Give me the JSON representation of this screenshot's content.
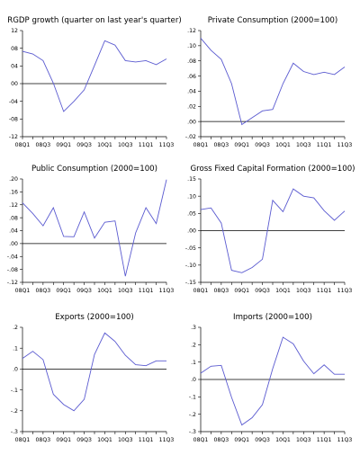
{
  "colors": {
    "line": "#5a5ad0",
    "axis": "#000000",
    "background": "#ffffff"
  },
  "chart_data": [
    {
      "type": "line",
      "title": "RGDP growth (quarter on last year's quarter)",
      "x": [
        "08Q1",
        "08Q2",
        "08Q3",
        "08Q4",
        "09Q1",
        "09Q2",
        "09Q3",
        "09Q4",
        "10Q1",
        "10Q2",
        "10Q3",
        "10Q4",
        "11Q1",
        "11Q2",
        "11Q3"
      ],
      "xtick_labels": [
        "08Q1",
        "08Q3",
        "09Q1",
        "09Q3",
        "10Q1",
        "10Q3",
        "11Q1",
        "11Q3"
      ],
      "yticks": [
        -0.12,
        -0.08,
        -0.04,
        0.0,
        0.04,
        0.08,
        0.12
      ],
      "ytick_labels": [
        "-12",
        "-08",
        "-04",
        "00",
        "04",
        "08",
        "12"
      ],
      "ylim": [
        -0.12,
        0.12
      ],
      "reference_line": 0,
      "series": [
        {
          "values": [
            0.073,
            0.067,
            0.052,
            0.001,
            -0.063,
            -0.04,
            -0.014,
            0.041,
            0.097,
            0.087,
            0.052,
            0.049,
            0.052,
            0.043,
            0.056
          ]
        }
      ]
    },
    {
      "type": "line",
      "title": "Private Consumption (2000=100)",
      "x": [
        "08Q1",
        "08Q2",
        "08Q3",
        "08Q4",
        "09Q1",
        "09Q2",
        "09Q3",
        "09Q4",
        "10Q1",
        "10Q2",
        "10Q3",
        "10Q4",
        "11Q1",
        "11Q2",
        "11Q3"
      ],
      "xtick_labels": [
        "08Q1",
        "08Q3",
        "09Q1",
        "09Q3",
        "10Q1",
        "10Q3",
        "11Q1",
        "11Q3"
      ],
      "yticks": [
        -0.02,
        0.0,
        0.02,
        0.04,
        0.06,
        0.08,
        0.1,
        0.12
      ],
      "ytick_labels": [
        "-.02",
        ".00",
        ".02",
        ".04",
        ".06",
        ".08",
        ".10",
        ".12"
      ],
      "ylim": [
        -0.02,
        0.12
      ],
      "reference_line": 0,
      "series": [
        {
          "values": [
            0.11,
            0.094,
            0.082,
            0.05,
            -0.004,
            0.005,
            0.014,
            0.016,
            0.05,
            0.077,
            0.066,
            0.062,
            0.065,
            0.062,
            0.072
          ]
        }
      ]
    },
    {
      "type": "line",
      "title": "Public Consumption (2000=100)",
      "x": [
        "08Q1",
        "08Q2",
        "08Q3",
        "08Q4",
        "09Q1",
        "09Q2",
        "09Q3",
        "09Q4",
        "10Q1",
        "10Q2",
        "10Q3",
        "10Q4",
        "11Q1",
        "11Q2",
        "11Q3"
      ],
      "xtick_labels": [
        "08Q1",
        "08Q3",
        "09Q1",
        "09Q3",
        "10Q1",
        "10Q3",
        "11Q1",
        "11Q3"
      ],
      "yticks": [
        -0.12,
        -0.08,
        -0.04,
        0.0,
        0.04,
        0.08,
        0.12,
        0.16,
        0.2
      ],
      "ytick_labels": [
        "-.12",
        "-.08",
        "-.04",
        ".00",
        ".04",
        ".08",
        ".12",
        ".16",
        ".20"
      ],
      "ylim": [
        -0.12,
        0.2
      ],
      "reference_line": 0,
      "series": [
        {
          "values": [
            0.126,
            0.093,
            0.055,
            0.111,
            0.022,
            0.021,
            0.098,
            0.017,
            0.066,
            0.07,
            -0.101,
            0.033,
            0.111,
            0.062,
            0.198
          ]
        }
      ]
    },
    {
      "type": "line",
      "title": "Gross Fixed Capital Formation (2000=100)",
      "x": [
        "08Q1",
        "08Q2",
        "08Q3",
        "08Q4",
        "09Q1",
        "09Q2",
        "09Q3",
        "09Q4",
        "10Q1",
        "10Q2",
        "10Q3",
        "10Q4",
        "11Q1",
        "11Q2",
        "11Q3"
      ],
      "xtick_labels": [
        "08Q1",
        "08Q3",
        "09Q1",
        "09Q3",
        "10Q1",
        "10Q3",
        "11Q1",
        "11Q3"
      ],
      "yticks": [
        -0.15,
        -0.1,
        -0.05,
        0.0,
        0.05,
        0.1,
        0.15
      ],
      "ytick_labels": [
        "-.15",
        "-.10",
        "-.05",
        ".00",
        ".05",
        ".10",
        ".15"
      ],
      "ylim": [
        -0.15,
        0.15
      ],
      "reference_line": 0,
      "series": [
        {
          "values": [
            0.061,
            0.066,
            0.022,
            -0.115,
            -0.122,
            -0.107,
            -0.083,
            0.088,
            0.055,
            0.121,
            0.1,
            0.095,
            0.058,
            0.03,
            0.057
          ]
        }
      ]
    },
    {
      "type": "line",
      "title": "Exports (2000=100)",
      "x": [
        "08Q1",
        "08Q2",
        "08Q3",
        "08Q4",
        "09Q1",
        "09Q2",
        "09Q3",
        "09Q4",
        "10Q1",
        "10Q2",
        "10Q3",
        "10Q4",
        "11Q1",
        "11Q2",
        "11Q3"
      ],
      "xtick_labels": [
        "08Q1",
        "08Q3",
        "09Q1",
        "09Q3",
        "10Q1",
        "10Q3",
        "11Q1",
        "11Q3"
      ],
      "yticks": [
        -0.3,
        -0.2,
        -0.1,
        0.0,
        0.1,
        0.2
      ],
      "ytick_labels": [
        "-.3",
        "-.2",
        "-.1",
        ".0",
        ".1",
        ".2"
      ],
      "ylim": [
        -0.3,
        0.2
      ],
      "reference_line": 0,
      "series": [
        {
          "values": [
            0.051,
            0.085,
            0.045,
            -0.121,
            -0.17,
            -0.2,
            -0.145,
            0.07,
            0.173,
            0.132,
            0.066,
            0.021,
            0.016,
            0.039,
            0.039
          ]
        }
      ]
    },
    {
      "type": "line",
      "title": "Imports (2000=100)",
      "x": [
        "08Q1",
        "08Q2",
        "08Q3",
        "08Q4",
        "09Q1",
        "09Q2",
        "09Q3",
        "09Q4",
        "10Q1",
        "10Q2",
        "10Q3",
        "10Q4",
        "11Q1",
        "11Q2",
        "11Q3"
      ],
      "xtick_labels": [
        "08Q1",
        "08Q3",
        "09Q1",
        "09Q3",
        "10Q1",
        "10Q3",
        "11Q1",
        "11Q3"
      ],
      "yticks": [
        -0.3,
        -0.2,
        -0.1,
        0.0,
        0.1,
        0.2,
        0.3
      ],
      "ytick_labels": [
        "-.3",
        "-.2",
        "-.1",
        ".0",
        ".1",
        ".2",
        ".3"
      ],
      "ylim": [
        -0.3,
        0.3
      ],
      "reference_line": 0,
      "series": [
        {
          "values": [
            0.036,
            0.076,
            0.081,
            -0.103,
            -0.262,
            -0.22,
            -0.145,
            0.062,
            0.243,
            0.205,
            0.106,
            0.033,
            0.084,
            0.03,
            0.03
          ]
        }
      ]
    }
  ]
}
